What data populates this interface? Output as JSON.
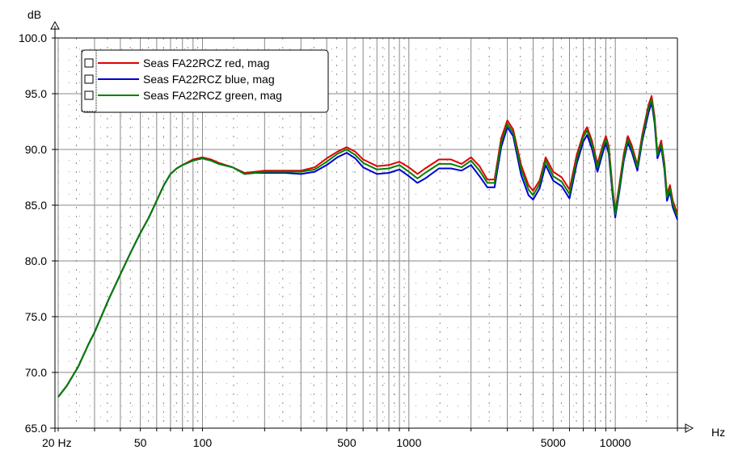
{
  "chart_data": {
    "type": "line",
    "title": "",
    "xlabel": "Hz",
    "ylabel": "dB",
    "x_scale": "log",
    "xlim": [
      20,
      20000
    ],
    "ylim": [
      65,
      100
    ],
    "grid": true,
    "legend_position": "top-left",
    "x_ticks": [
      {
        "value": 20,
        "label": "20 Hz"
      },
      {
        "value": 50,
        "label": "50"
      },
      {
        "value": 100,
        "label": "100"
      },
      {
        "value": 500,
        "label": "500"
      },
      {
        "value": 1000,
        "label": "1000"
      },
      {
        "value": 5000,
        "label": "5000"
      },
      {
        "value": 10000,
        "label": "10000"
      }
    ],
    "y_ticks": [
      {
        "value": 65,
        "label": "65.0"
      },
      {
        "value": 70,
        "label": "70.0"
      },
      {
        "value": 75,
        "label": "75.0"
      },
      {
        "value": 80,
        "label": "80.0"
      },
      {
        "value": 85,
        "label": "85.0"
      },
      {
        "value": 90,
        "label": "90.0"
      },
      {
        "value": 95,
        "label": "95.0"
      },
      {
        "value": 100,
        "label": "100.0"
      }
    ],
    "series": [
      {
        "name": "Seas FA22RCZ red, mag",
        "color": "#e00000",
        "points": [
          [
            20,
            67.8
          ],
          [
            22,
            68.8
          ],
          [
            25,
            70.5
          ],
          [
            28,
            72.5
          ],
          [
            30,
            73.6
          ],
          [
            35,
            76.5
          ],
          [
            40,
            78.8
          ],
          [
            45,
            80.8
          ],
          [
            50,
            82.5
          ],
          [
            55,
            83.9
          ],
          [
            60,
            85.4
          ],
          [
            65,
            86.8
          ],
          [
            70,
            87.8
          ],
          [
            75,
            88.3
          ],
          [
            80,
            88.6
          ],
          [
            90,
            89.1
          ],
          [
            100,
            89.3
          ],
          [
            110,
            89.1
          ],
          [
            120,
            88.8
          ],
          [
            140,
            88.4
          ],
          [
            160,
            87.9
          ],
          [
            180,
            88.0
          ],
          [
            200,
            88.1
          ],
          [
            250,
            88.1
          ],
          [
            300,
            88.1
          ],
          [
            350,
            88.4
          ],
          [
            400,
            89.2
          ],
          [
            450,
            89.8
          ],
          [
            500,
            90.2
          ],
          [
            550,
            89.8
          ],
          [
            600,
            89.1
          ],
          [
            700,
            88.5
          ],
          [
            800,
            88.6
          ],
          [
            900,
            88.9
          ],
          [
            1000,
            88.4
          ],
          [
            1100,
            87.8
          ],
          [
            1200,
            88.3
          ],
          [
            1400,
            89.1
          ],
          [
            1600,
            89.1
          ],
          [
            1800,
            88.7
          ],
          [
            2000,
            89.3
          ],
          [
            2200,
            88.5
          ],
          [
            2400,
            87.3
          ],
          [
            2600,
            87.3
          ],
          [
            2800,
            91.0
          ],
          [
            3000,
            92.6
          ],
          [
            3200,
            91.8
          ],
          [
            3500,
            88.6
          ],
          [
            3800,
            86.8
          ],
          [
            4000,
            86.3
          ],
          [
            4300,
            87.2
          ],
          [
            4600,
            89.3
          ],
          [
            5000,
            88.0
          ],
          [
            5500,
            87.5
          ],
          [
            6000,
            86.4
          ],
          [
            6500,
            89.5
          ],
          [
            7000,
            91.4
          ],
          [
            7300,
            92.0
          ],
          [
            7700,
            90.8
          ],
          [
            8200,
            88.7
          ],
          [
            8700,
            90.4
          ],
          [
            9000,
            91.2
          ],
          [
            9300,
            90.3
          ],
          [
            9700,
            86.5
          ],
          [
            10000,
            84.4
          ],
          [
            10500,
            87.0
          ],
          [
            11000,
            89.6
          ],
          [
            11500,
            91.2
          ],
          [
            12000,
            90.4
          ],
          [
            12800,
            88.6
          ],
          [
            13500,
            91.3
          ],
          [
            14500,
            94.0
          ],
          [
            15000,
            94.8
          ],
          [
            15500,
            93.0
          ],
          [
            16000,
            89.7
          ],
          [
            16700,
            90.8
          ],
          [
            17300,
            88.8
          ],
          [
            17800,
            86.0
          ],
          [
            18400,
            86.8
          ],
          [
            19000,
            85.4
          ],
          [
            20000,
            84.2
          ]
        ]
      },
      {
        "name": "Seas FA22RCZ blue, mag",
        "color": "#0000d0",
        "points": [
          [
            20,
            67.8
          ],
          [
            22,
            68.8
          ],
          [
            25,
            70.5
          ],
          [
            28,
            72.5
          ],
          [
            30,
            73.6
          ],
          [
            35,
            76.5
          ],
          [
            40,
            78.8
          ],
          [
            45,
            80.8
          ],
          [
            50,
            82.5
          ],
          [
            55,
            83.9
          ],
          [
            60,
            85.4
          ],
          [
            65,
            86.8
          ],
          [
            70,
            87.8
          ],
          [
            75,
            88.3
          ],
          [
            80,
            88.6
          ],
          [
            90,
            89.0
          ],
          [
            100,
            89.2
          ],
          [
            110,
            89.0
          ],
          [
            120,
            88.7
          ],
          [
            140,
            88.4
          ],
          [
            160,
            87.8
          ],
          [
            180,
            87.9
          ],
          [
            200,
            87.9
          ],
          [
            250,
            87.9
          ],
          [
            300,
            87.8
          ],
          [
            350,
            88.0
          ],
          [
            400,
            88.6
          ],
          [
            450,
            89.3
          ],
          [
            500,
            89.7
          ],
          [
            550,
            89.2
          ],
          [
            600,
            88.4
          ],
          [
            700,
            87.8
          ],
          [
            800,
            87.9
          ],
          [
            900,
            88.2
          ],
          [
            1000,
            87.6
          ],
          [
            1100,
            87.0
          ],
          [
            1200,
            87.4
          ],
          [
            1400,
            88.3
          ],
          [
            1600,
            88.3
          ],
          [
            1800,
            88.1
          ],
          [
            2000,
            88.6
          ],
          [
            2200,
            87.6
          ],
          [
            2400,
            86.6
          ],
          [
            2600,
            86.6
          ],
          [
            2800,
            90.2
          ],
          [
            3000,
            92.0
          ],
          [
            3200,
            91.2
          ],
          [
            3500,
            87.7
          ],
          [
            3800,
            85.9
          ],
          [
            4000,
            85.5
          ],
          [
            4300,
            86.5
          ],
          [
            4600,
            88.6
          ],
          [
            5000,
            87.2
          ],
          [
            5500,
            86.7
          ],
          [
            6000,
            85.6
          ],
          [
            6500,
            88.7
          ],
          [
            7000,
            90.7
          ],
          [
            7300,
            91.3
          ],
          [
            7700,
            90.1
          ],
          [
            8200,
            88.0
          ],
          [
            8700,
            89.7
          ],
          [
            9000,
            90.6
          ],
          [
            9300,
            89.6
          ],
          [
            9700,
            85.9
          ],
          [
            10000,
            83.9
          ],
          [
            10500,
            86.4
          ],
          [
            11000,
            89.0
          ],
          [
            11500,
            90.6
          ],
          [
            12000,
            89.8
          ],
          [
            12800,
            88.1
          ],
          [
            13500,
            90.7
          ],
          [
            14500,
            93.3
          ],
          [
            15000,
            94.2
          ],
          [
            15500,
            92.4
          ],
          [
            16000,
            89.2
          ],
          [
            16700,
            90.2
          ],
          [
            17300,
            88.2
          ],
          [
            17800,
            85.4
          ],
          [
            18400,
            86.2
          ],
          [
            19000,
            84.8
          ],
          [
            20000,
            83.7
          ]
        ]
      },
      {
        "name": "Seas FA22RCZ green, mag",
        "color": "#008000",
        "points": [
          [
            20,
            67.8
          ],
          [
            22,
            68.8
          ],
          [
            25,
            70.5
          ],
          [
            28,
            72.5
          ],
          [
            30,
            73.6
          ],
          [
            35,
            76.5
          ],
          [
            40,
            78.8
          ],
          [
            45,
            80.8
          ],
          [
            50,
            82.5
          ],
          [
            55,
            83.9
          ],
          [
            60,
            85.4
          ],
          [
            65,
            86.8
          ],
          [
            70,
            87.8
          ],
          [
            75,
            88.3
          ],
          [
            80,
            88.6
          ],
          [
            90,
            89.0
          ],
          [
            100,
            89.2
          ],
          [
            110,
            89.0
          ],
          [
            120,
            88.7
          ],
          [
            140,
            88.4
          ],
          [
            160,
            87.8
          ],
          [
            180,
            87.9
          ],
          [
            200,
            88.0
          ],
          [
            250,
            88.0
          ],
          [
            300,
            88.0
          ],
          [
            350,
            88.2
          ],
          [
            400,
            88.9
          ],
          [
            450,
            89.6
          ],
          [
            500,
            90.0
          ],
          [
            550,
            89.5
          ],
          [
            600,
            88.8
          ],
          [
            700,
            88.2
          ],
          [
            800,
            88.3
          ],
          [
            900,
            88.6
          ],
          [
            1000,
            88.0
          ],
          [
            1100,
            87.4
          ],
          [
            1200,
            87.9
          ],
          [
            1400,
            88.7
          ],
          [
            1600,
            88.7
          ],
          [
            1800,
            88.4
          ],
          [
            2000,
            89.0
          ],
          [
            2200,
            88.1
          ],
          [
            2400,
            87.0
          ],
          [
            2600,
            87.0
          ],
          [
            2800,
            90.6
          ],
          [
            3000,
            92.3
          ],
          [
            3200,
            91.5
          ],
          [
            3500,
            88.2
          ],
          [
            3800,
            86.4
          ],
          [
            4000,
            85.9
          ],
          [
            4300,
            86.9
          ],
          [
            4600,
            89.0
          ],
          [
            5000,
            87.6
          ],
          [
            5500,
            87.1
          ],
          [
            6000,
            86.0
          ],
          [
            6500,
            89.1
          ],
          [
            7000,
            91.1
          ],
          [
            7300,
            91.7
          ],
          [
            7700,
            90.5
          ],
          [
            8200,
            88.4
          ],
          [
            8700,
            90.1
          ],
          [
            9000,
            90.9
          ],
          [
            9300,
            90.0
          ],
          [
            9700,
            86.2
          ],
          [
            10000,
            84.2
          ],
          [
            10500,
            86.7
          ],
          [
            11000,
            89.3
          ],
          [
            11500,
            90.9
          ],
          [
            12000,
            90.1
          ],
          [
            12800,
            88.4
          ],
          [
            13500,
            91.0
          ],
          [
            14500,
            93.7
          ],
          [
            15000,
            94.5
          ],
          [
            15500,
            92.7
          ],
          [
            16000,
            89.5
          ],
          [
            16700,
            90.5
          ],
          [
            17300,
            88.5
          ],
          [
            17800,
            85.7
          ],
          [
            18400,
            86.5
          ],
          [
            19000,
            85.1
          ],
          [
            20000,
            84.0
          ]
        ]
      }
    ]
  }
}
